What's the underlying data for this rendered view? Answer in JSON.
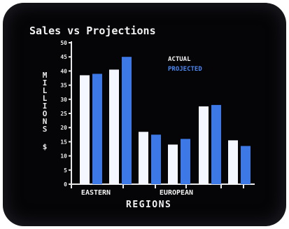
{
  "chart_data": {
    "type": "bar",
    "title": "Sales vs Projections",
    "xlabel": "REGIONS",
    "ylabel": "$ MILLIONS",
    "ylim": [
      0,
      50
    ],
    "yticks": [
      0,
      5,
      10,
      15,
      20,
      25,
      30,
      35,
      40,
      45,
      50
    ],
    "categories": [
      "",
      "",
      "",
      "",
      "",
      ""
    ],
    "group_labels": [
      "EASTERN",
      "EUROPEAN"
    ],
    "legend_placement": "top-right",
    "grid": false,
    "series": [
      {
        "name": "ACTUAL",
        "color": "#f4f7ff",
        "values": [
          38.5,
          40.5,
          18.5,
          14,
          27.5,
          15.5
        ]
      },
      {
        "name": "PROJECTED",
        "color": "#3c78e6",
        "values": [
          39,
          45,
          17.5,
          16,
          28,
          13.5
        ]
      }
    ]
  }
}
